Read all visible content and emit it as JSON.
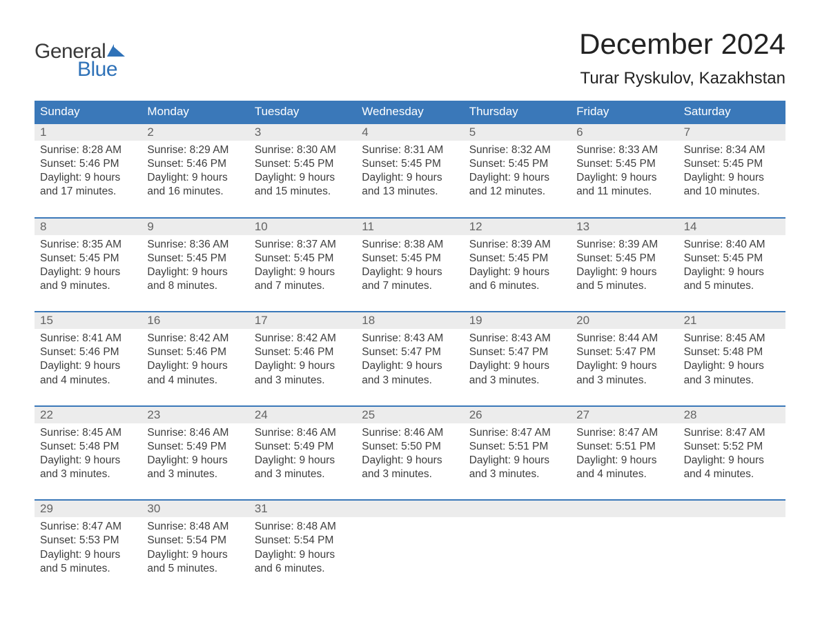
{
  "logo": {
    "text_general": "General",
    "text_blue": "Blue",
    "color_general": "#3a3a3a",
    "color_blue": "#2f72b8"
  },
  "title": "December 2024",
  "location": "Turar Ryskulov, Kazakhstan",
  "colors": {
    "header_bg": "#3a78b9",
    "header_text": "#ffffff",
    "daynum_bg": "#ececec",
    "daynum_text": "#636363",
    "body_text": "#3d3d3d",
    "week_border": "#3a78b9",
    "page_bg": "#ffffff"
  },
  "fonts": {
    "title_size_pt": 32,
    "location_size_pt": 18,
    "header_size_pt": 13,
    "daynum_size_pt": 13,
    "cell_size_pt": 11.5
  },
  "day_names": [
    "Sunday",
    "Monday",
    "Tuesday",
    "Wednesday",
    "Thursday",
    "Friday",
    "Saturday"
  ],
  "weeks": [
    [
      {
        "num": "1",
        "sunrise": "Sunrise: 8:28 AM",
        "sunset": "Sunset: 5:46 PM",
        "daylight1": "Daylight: 9 hours",
        "daylight2": "and 17 minutes."
      },
      {
        "num": "2",
        "sunrise": "Sunrise: 8:29 AM",
        "sunset": "Sunset: 5:46 PM",
        "daylight1": "Daylight: 9 hours",
        "daylight2": "and 16 minutes."
      },
      {
        "num": "3",
        "sunrise": "Sunrise: 8:30 AM",
        "sunset": "Sunset: 5:45 PM",
        "daylight1": "Daylight: 9 hours",
        "daylight2": "and 15 minutes."
      },
      {
        "num": "4",
        "sunrise": "Sunrise: 8:31 AM",
        "sunset": "Sunset: 5:45 PM",
        "daylight1": "Daylight: 9 hours",
        "daylight2": "and 13 minutes."
      },
      {
        "num": "5",
        "sunrise": "Sunrise: 8:32 AM",
        "sunset": "Sunset: 5:45 PM",
        "daylight1": "Daylight: 9 hours",
        "daylight2": "and 12 minutes."
      },
      {
        "num": "6",
        "sunrise": "Sunrise: 8:33 AM",
        "sunset": "Sunset: 5:45 PM",
        "daylight1": "Daylight: 9 hours",
        "daylight2": "and 11 minutes."
      },
      {
        "num": "7",
        "sunrise": "Sunrise: 8:34 AM",
        "sunset": "Sunset: 5:45 PM",
        "daylight1": "Daylight: 9 hours",
        "daylight2": "and 10 minutes."
      }
    ],
    [
      {
        "num": "8",
        "sunrise": "Sunrise: 8:35 AM",
        "sunset": "Sunset: 5:45 PM",
        "daylight1": "Daylight: 9 hours",
        "daylight2": "and 9 minutes."
      },
      {
        "num": "9",
        "sunrise": "Sunrise: 8:36 AM",
        "sunset": "Sunset: 5:45 PM",
        "daylight1": "Daylight: 9 hours",
        "daylight2": "and 8 minutes."
      },
      {
        "num": "10",
        "sunrise": "Sunrise: 8:37 AM",
        "sunset": "Sunset: 5:45 PM",
        "daylight1": "Daylight: 9 hours",
        "daylight2": "and 7 minutes."
      },
      {
        "num": "11",
        "sunrise": "Sunrise: 8:38 AM",
        "sunset": "Sunset: 5:45 PM",
        "daylight1": "Daylight: 9 hours",
        "daylight2": "and 7 minutes."
      },
      {
        "num": "12",
        "sunrise": "Sunrise: 8:39 AM",
        "sunset": "Sunset: 5:45 PM",
        "daylight1": "Daylight: 9 hours",
        "daylight2": "and 6 minutes."
      },
      {
        "num": "13",
        "sunrise": "Sunrise: 8:39 AM",
        "sunset": "Sunset: 5:45 PM",
        "daylight1": "Daylight: 9 hours",
        "daylight2": "and 5 minutes."
      },
      {
        "num": "14",
        "sunrise": "Sunrise: 8:40 AM",
        "sunset": "Sunset: 5:45 PM",
        "daylight1": "Daylight: 9 hours",
        "daylight2": "and 5 minutes."
      }
    ],
    [
      {
        "num": "15",
        "sunrise": "Sunrise: 8:41 AM",
        "sunset": "Sunset: 5:46 PM",
        "daylight1": "Daylight: 9 hours",
        "daylight2": "and 4 minutes."
      },
      {
        "num": "16",
        "sunrise": "Sunrise: 8:42 AM",
        "sunset": "Sunset: 5:46 PM",
        "daylight1": "Daylight: 9 hours",
        "daylight2": "and 4 minutes."
      },
      {
        "num": "17",
        "sunrise": "Sunrise: 8:42 AM",
        "sunset": "Sunset: 5:46 PM",
        "daylight1": "Daylight: 9 hours",
        "daylight2": "and 3 minutes."
      },
      {
        "num": "18",
        "sunrise": "Sunrise: 8:43 AM",
        "sunset": "Sunset: 5:47 PM",
        "daylight1": "Daylight: 9 hours",
        "daylight2": "and 3 minutes."
      },
      {
        "num": "19",
        "sunrise": "Sunrise: 8:43 AM",
        "sunset": "Sunset: 5:47 PM",
        "daylight1": "Daylight: 9 hours",
        "daylight2": "and 3 minutes."
      },
      {
        "num": "20",
        "sunrise": "Sunrise: 8:44 AM",
        "sunset": "Sunset: 5:47 PM",
        "daylight1": "Daylight: 9 hours",
        "daylight2": "and 3 minutes."
      },
      {
        "num": "21",
        "sunrise": "Sunrise: 8:45 AM",
        "sunset": "Sunset: 5:48 PM",
        "daylight1": "Daylight: 9 hours",
        "daylight2": "and 3 minutes."
      }
    ],
    [
      {
        "num": "22",
        "sunrise": "Sunrise: 8:45 AM",
        "sunset": "Sunset: 5:48 PM",
        "daylight1": "Daylight: 9 hours",
        "daylight2": "and 3 minutes."
      },
      {
        "num": "23",
        "sunrise": "Sunrise: 8:46 AM",
        "sunset": "Sunset: 5:49 PM",
        "daylight1": "Daylight: 9 hours",
        "daylight2": "and 3 minutes."
      },
      {
        "num": "24",
        "sunrise": "Sunrise: 8:46 AM",
        "sunset": "Sunset: 5:49 PM",
        "daylight1": "Daylight: 9 hours",
        "daylight2": "and 3 minutes."
      },
      {
        "num": "25",
        "sunrise": "Sunrise: 8:46 AM",
        "sunset": "Sunset: 5:50 PM",
        "daylight1": "Daylight: 9 hours",
        "daylight2": "and 3 minutes."
      },
      {
        "num": "26",
        "sunrise": "Sunrise: 8:47 AM",
        "sunset": "Sunset: 5:51 PM",
        "daylight1": "Daylight: 9 hours",
        "daylight2": "and 3 minutes."
      },
      {
        "num": "27",
        "sunrise": "Sunrise: 8:47 AM",
        "sunset": "Sunset: 5:51 PM",
        "daylight1": "Daylight: 9 hours",
        "daylight2": "and 4 minutes."
      },
      {
        "num": "28",
        "sunrise": "Sunrise: 8:47 AM",
        "sunset": "Sunset: 5:52 PM",
        "daylight1": "Daylight: 9 hours",
        "daylight2": "and 4 minutes."
      }
    ],
    [
      {
        "num": "29",
        "sunrise": "Sunrise: 8:47 AM",
        "sunset": "Sunset: 5:53 PM",
        "daylight1": "Daylight: 9 hours",
        "daylight2": "and 5 minutes."
      },
      {
        "num": "30",
        "sunrise": "Sunrise: 8:48 AM",
        "sunset": "Sunset: 5:54 PM",
        "daylight1": "Daylight: 9 hours",
        "daylight2": "and 5 minutes."
      },
      {
        "num": "31",
        "sunrise": "Sunrise: 8:48 AM",
        "sunset": "Sunset: 5:54 PM",
        "daylight1": "Daylight: 9 hours",
        "daylight2": "and 6 minutes."
      },
      null,
      null,
      null,
      null
    ]
  ]
}
